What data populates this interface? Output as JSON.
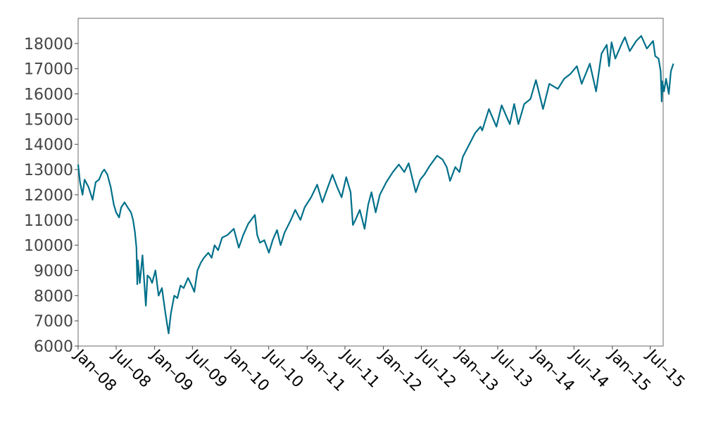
{
  "chart_data": {
    "type": "line",
    "title": "",
    "xlabel": "",
    "ylabel": "",
    "grid": false,
    "legend": "none",
    "xlim": [
      "2008-01-01",
      "2015-09-01"
    ],
    "ylim": [
      6000,
      19000
    ],
    "x_tick_labels": [
      "Jan–08",
      "Jul–08",
      "Jan–09",
      "Jul–09",
      "Jan–10",
      "Jul–10",
      "Jan–11",
      "Jul–11",
      "Jan–12",
      "Jul–12",
      "Jan–13",
      "Jul–13",
      "Jan–14",
      "Jul–14",
      "Jan–15",
      "Jul–15"
    ],
    "x_tick_dates": [
      "2008-01-01",
      "2008-07-01",
      "2009-01-01",
      "2009-07-01",
      "2010-01-01",
      "2010-07-01",
      "2011-01-01",
      "2011-07-01",
      "2012-01-01",
      "2012-07-01",
      "2013-01-01",
      "2013-07-01",
      "2014-01-01",
      "2014-07-01",
      "2015-01-01",
      "2015-07-01"
    ],
    "y_ticks": [
      6000,
      7000,
      8000,
      9000,
      10000,
      11000,
      12000,
      13000,
      14000,
      15000,
      16000,
      17000,
      18000
    ],
    "series": [
      {
        "color": "#00708a",
        "points": [
          [
            "2008-01-01",
            13200
          ],
          [
            "2008-01-10",
            12500
          ],
          [
            "2008-01-22",
            12000
          ],
          [
            "2008-02-01",
            12600
          ],
          [
            "2008-02-20",
            12300
          ],
          [
            "2008-03-10",
            11800
          ],
          [
            "2008-03-25",
            12500
          ],
          [
            "2008-04-10",
            12600
          ],
          [
            "2008-04-25",
            12900
          ],
          [
            "2008-05-05",
            13000
          ],
          [
            "2008-05-20",
            12800
          ],
          [
            "2008-06-05",
            12300
          ],
          [
            "2008-06-20",
            11600
          ],
          [
            "2008-07-01",
            11300
          ],
          [
            "2008-07-15",
            11100
          ],
          [
            "2008-07-25",
            11500
          ],
          [
            "2008-08-10",
            11700
          ],
          [
            "2008-08-25",
            11500
          ],
          [
            "2008-09-10",
            11300
          ],
          [
            "2008-09-20",
            11000
          ],
          [
            "2008-09-29",
            10500
          ],
          [
            "2008-10-06",
            9900
          ],
          [
            "2008-10-10",
            8450
          ],
          [
            "2008-10-13",
            9400
          ],
          [
            "2008-10-22",
            8500
          ],
          [
            "2008-11-04",
            9600
          ],
          [
            "2008-11-20",
            7600
          ],
          [
            "2008-11-28",
            8800
          ],
          [
            "2008-12-10",
            8700
          ],
          [
            "2008-12-20",
            8500
          ],
          [
            "2009-01-05",
            9000
          ],
          [
            "2009-01-20",
            8000
          ],
          [
            "2009-02-05",
            8300
          ],
          [
            "2009-02-20",
            7400
          ],
          [
            "2009-03-05",
            6700
          ],
          [
            "2009-03-09",
            6500
          ],
          [
            "2009-03-20",
            7300
          ],
          [
            "2009-04-05",
            8000
          ],
          [
            "2009-04-20",
            7900
          ],
          [
            "2009-05-05",
            8400
          ],
          [
            "2009-05-20",
            8300
          ],
          [
            "2009-06-10",
            8700
          ],
          [
            "2009-06-25",
            8450
          ],
          [
            "2009-07-10",
            8150
          ],
          [
            "2009-07-25",
            9000
          ],
          [
            "2009-08-10",
            9300
          ],
          [
            "2009-08-25",
            9500
          ],
          [
            "2009-09-15",
            9700
          ],
          [
            "2009-10-01",
            9500
          ],
          [
            "2009-10-15",
            10000
          ],
          [
            "2009-11-01",
            9800
          ],
          [
            "2009-11-20",
            10300
          ],
          [
            "2009-12-15",
            10400
          ],
          [
            "2010-01-15",
            10650
          ],
          [
            "2010-02-08",
            9900
          ],
          [
            "2010-03-01",
            10400
          ],
          [
            "2010-03-25",
            10850
          ],
          [
            "2010-04-26",
            11200
          ],
          [
            "2010-05-07",
            10400
          ],
          [
            "2010-05-20",
            10100
          ],
          [
            "2010-06-10",
            10200
          ],
          [
            "2010-07-02",
            9700
          ],
          [
            "2010-07-20",
            10200
          ],
          [
            "2010-08-10",
            10600
          ],
          [
            "2010-08-27",
            10000
          ],
          [
            "2010-09-15",
            10500
          ],
          [
            "2010-10-15",
            11000
          ],
          [
            "2010-11-05",
            11400
          ],
          [
            "2010-11-30",
            11000
          ],
          [
            "2010-12-20",
            11500
          ],
          [
            "2011-01-20",
            11900
          ],
          [
            "2011-02-18",
            12400
          ],
          [
            "2011-03-15",
            11700
          ],
          [
            "2011-04-10",
            12300
          ],
          [
            "2011-05-02",
            12800
          ],
          [
            "2011-05-25",
            12300
          ],
          [
            "2011-06-15",
            11900
          ],
          [
            "2011-07-07",
            12700
          ],
          [
            "2011-07-28",
            12100
          ],
          [
            "2011-08-08",
            10800
          ],
          [
            "2011-08-20",
            11000
          ],
          [
            "2011-09-10",
            11400
          ],
          [
            "2011-10-03",
            10650
          ],
          [
            "2011-10-20",
            11600
          ],
          [
            "2011-11-05",
            12100
          ],
          [
            "2011-11-25",
            11300
          ],
          [
            "2011-12-15",
            12000
          ],
          [
            "2012-01-15",
            12500
          ],
          [
            "2012-02-15",
            12900
          ],
          [
            "2012-03-15",
            13200
          ],
          [
            "2012-04-10",
            12900
          ],
          [
            "2012-05-01",
            13250
          ],
          [
            "2012-05-20",
            12600
          ],
          [
            "2012-06-04",
            12100
          ],
          [
            "2012-06-25",
            12600
          ],
          [
            "2012-07-15",
            12800
          ],
          [
            "2012-08-10",
            13150
          ],
          [
            "2012-09-14",
            13550
          ],
          [
            "2012-10-10",
            13400
          ],
          [
            "2012-10-30",
            13100
          ],
          [
            "2012-11-15",
            12550
          ],
          [
            "2012-12-10",
            13100
          ],
          [
            "2012-12-30",
            12900
          ],
          [
            "2013-01-15",
            13500
          ],
          [
            "2013-02-15",
            14000
          ],
          [
            "2013-03-15",
            14450
          ],
          [
            "2013-04-10",
            14700
          ],
          [
            "2013-04-18",
            14550
          ],
          [
            "2013-05-20",
            15400
          ],
          [
            "2013-06-25",
            14700
          ],
          [
            "2013-07-20",
            15550
          ],
          [
            "2013-08-28",
            14800
          ],
          [
            "2013-09-18",
            15600
          ],
          [
            "2013-10-08",
            14800
          ],
          [
            "2013-11-05",
            15600
          ],
          [
            "2013-12-05",
            15800
          ],
          [
            "2013-12-31",
            16550
          ],
          [
            "2014-02-03",
            15400
          ],
          [
            "2014-03-05",
            16400
          ],
          [
            "2014-04-15",
            16200
          ],
          [
            "2014-05-15",
            16600
          ],
          [
            "2014-06-15",
            16800
          ],
          [
            "2014-07-15",
            17100
          ],
          [
            "2014-08-07",
            16400
          ],
          [
            "2014-09-15",
            17200
          ],
          [
            "2014-10-15",
            16100
          ],
          [
            "2014-11-10",
            17600
          ],
          [
            "2014-12-05",
            17950
          ],
          [
            "2014-12-16",
            17100
          ],
          [
            "2014-12-28",
            18050
          ],
          [
            "2015-01-15",
            17400
          ],
          [
            "2015-02-15",
            18000
          ],
          [
            "2015-03-02",
            18250
          ],
          [
            "2015-03-25",
            17700
          ],
          [
            "2015-04-25",
            18100
          ],
          [
            "2015-05-19",
            18300
          ],
          [
            "2015-06-15",
            17800
          ],
          [
            "2015-07-15",
            18100
          ],
          [
            "2015-07-25",
            17500
          ],
          [
            "2015-08-10",
            17400
          ],
          [
            "2015-08-20",
            16900
          ],
          [
            "2015-08-25",
            15700
          ],
          [
            "2015-08-28",
            16500
          ],
          [
            "2015-09-05",
            16100
          ],
          [
            "2015-09-15",
            16600
          ],
          [
            "2015-09-28",
            16000
          ],
          [
            "2015-10-08",
            16900
          ],
          [
            "2015-10-20",
            17200
          ]
        ]
      }
    ]
  }
}
